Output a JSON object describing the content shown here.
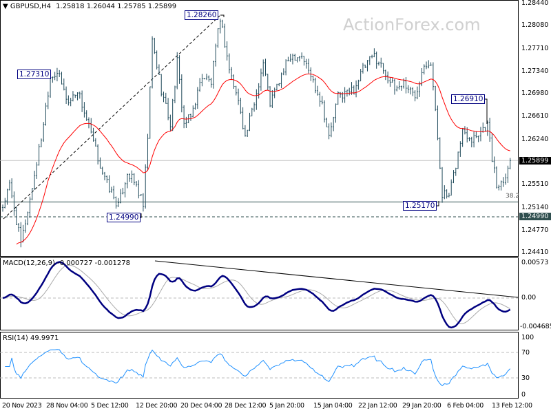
{
  "header": {
    "symbol": "GBPUSD,H4",
    "ohlc": "1.25818 1.26044 1.25785 1.25899"
  },
  "watermark": "ActionForex.com",
  "price_axis": [
    "1.28440",
    "1.28080",
    "1.27710",
    "1.27340",
    "1.26980",
    "1.26610",
    "1.26240",
    "1.25510",
    "1.25140",
    "1.24770",
    "1.24410"
  ],
  "current_price_label": "1.25899",
  "support_label": "1.24990",
  "fib_label": "38.2",
  "annotations": {
    "a1": "1.27310",
    "a2": "1.28260",
    "a3": "1.24990",
    "a4": "1.25170",
    "a5": "1.26910"
  },
  "macd": {
    "title": "MACD(12,26,9) -0.000727 -0.001278",
    "axis": [
      "0.00573",
      "0.00",
      "-0.004685"
    ]
  },
  "rsi": {
    "title": "RSI(14) 49.9971",
    "axis": [
      "100",
      "70",
      "30",
      "0"
    ]
  },
  "time_axis": [
    "20 Nov 2023",
    "28 Nov 04:00",
    "5 Dec 12:00",
    "12 Dec 20:00",
    "20 Dec 04:00",
    "28 Dec 12:00",
    "5 Jan 20:00",
    "15 Jan 04:00",
    "22 Jan 12:00",
    "29 Jan 20:00",
    "6 Feb 04:00",
    "13 Feb 12:00"
  ],
  "chart_data": {
    "type": "ohlc",
    "title": "GBPUSD,H4",
    "ylim": [
      1.2441,
      1.2844
    ],
    "bars": 225,
    "close_path": [
      [
        0,
        1.2516
      ],
      [
        3,
        1.2549
      ],
      [
        8,
        1.2455
      ],
      [
        12,
        1.2527
      ],
      [
        17,
        1.2627
      ],
      [
        21,
        1.2727
      ],
      [
        24,
        1.2733
      ],
      [
        29,
        1.2683
      ],
      [
        33,
        1.2705
      ],
      [
        38,
        1.2644
      ],
      [
        42,
        1.2594
      ],
      [
        45,
        1.256
      ],
      [
        51,
        1.2516
      ],
      [
        55,
        1.2571
      ],
      [
        59,
        1.2549
      ],
      [
        62,
        1.2516
      ],
      [
        64,
        1.2627
      ],
      [
        66,
        1.2783
      ],
      [
        70,
        1.2705
      ],
      [
        74,
        1.2649
      ],
      [
        77,
        1.2749
      ],
      [
        80,
        1.2649
      ],
      [
        83,
        1.266
      ],
      [
        88,
        1.2727
      ],
      [
        92,
        1.2716
      ],
      [
        96,
        1.2822
      ],
      [
        100,
        1.2738
      ],
      [
        105,
        1.2672
      ],
      [
        107,
        1.2627
      ],
      [
        111,
        1.2683
      ],
      [
        115,
        1.2749
      ],
      [
        118,
        1.2683
      ],
      [
        123,
        1.2727
      ],
      [
        127,
        1.276
      ],
      [
        132,
        1.276
      ],
      [
        136,
        1.2727
      ],
      [
        141,
        1.2683
      ],
      [
        144,
        1.2627
      ],
      [
        148,
        1.2694
      ],
      [
        155,
        1.2705
      ],
      [
        159,
        1.2738
      ],
      [
        164,
        1.276
      ],
      [
        168,
        1.2738
      ],
      [
        173,
        1.2705
      ],
      [
        177,
        1.2716
      ],
      [
        182,
        1.2694
      ],
      [
        186,
        1.2749
      ],
      [
        189,
        1.2749
      ],
      [
        192,
        1.2627
      ],
      [
        194,
        1.2538
      ],
      [
        197,
        1.253
      ],
      [
        200,
        1.2583
      ],
      [
        203,
        1.2638
      ],
      [
        207,
        1.2627
      ],
      [
        211,
        1.2638
      ],
      [
        214,
        1.2649
      ],
      [
        216,
        1.2594
      ],
      [
        218,
        1.2549
      ],
      [
        221,
        1.256
      ],
      [
        224,
        1.259
      ]
    ],
    "levels": {
      "current": 1.25899,
      "fib_38_2": 1.2523,
      "support": 1.2499
    },
    "macd_range": [
      -0.004685,
      0.00573
    ],
    "rsi_levels": [
      30,
      70
    ],
    "colors": {
      "bars": "#1f4a5a",
      "ma": "#ff0000",
      "macd": "#000080",
      "signal": "#aaaaaa",
      "rsi": "#1e90ff"
    }
  }
}
